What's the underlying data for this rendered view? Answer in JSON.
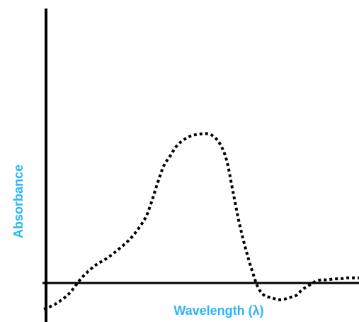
{
  "chart_data": {
    "type": "line",
    "title": "",
    "xlabel": "Wavelength (λ)",
    "ylabel": "Absorbance",
    "axis_label_color": "#29b6f6",
    "line_style": "dotted",
    "line_color": "#000000",
    "axis_color": "#000000",
    "grid": false,
    "xlim": [
      0,
      100
    ],
    "ylim": [
      -10,
      100
    ],
    "series": [
      {
        "x": [
          0,
          4,
          8,
          12,
          16,
          20,
          24,
          28,
          32,
          34,
          36,
          38,
          40,
          42,
          44,
          46,
          48,
          50,
          52,
          54,
          56,
          58,
          60,
          62,
          64,
          66,
          68,
          70,
          72,
          74,
          76,
          78,
          80,
          82,
          84,
          86,
          88,
          90,
          92,
          94,
          96,
          98,
          100
        ],
        "y": [
          -10,
          -7,
          -2,
          6,
          12,
          16,
          21,
          27,
          36,
          44,
          54,
          63,
          68,
          73,
          76,
          78,
          79,
          79.5,
          79.5,
          78,
          74,
          66,
          50,
          34,
          21,
          10,
          1,
          -3,
          -4,
          -5,
          -5,
          -4,
          -3,
          0,
          2,
          4,
          5,
          5,
          5.5,
          5.5,
          6,
          6,
          6
        ]
      }
    ]
  }
}
